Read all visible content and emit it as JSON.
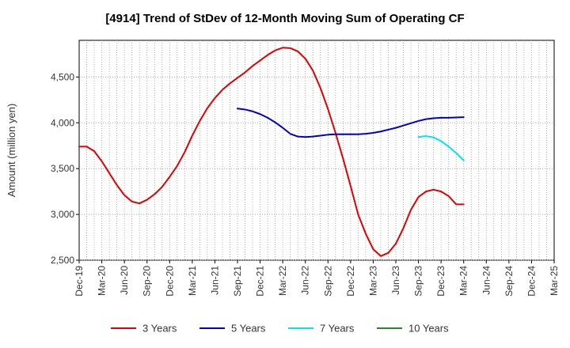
{
  "chart_data": {
    "type": "line",
    "title": "[4914]  Trend of StDev of 12-Month Moving Sum of Operating CF",
    "xlabel": "",
    "ylabel": "Amount (million yen)",
    "ylim": [
      2500,
      4900
    ],
    "yticks": [
      2500,
      3000,
      3500,
      4000,
      4500
    ],
    "ytick_labels": [
      "2,500",
      "3,000",
      "3,500",
      "4,000",
      "4,500"
    ],
    "xlim": [
      "2019-12",
      "2025-03"
    ],
    "xtick_labels": [
      "Dec-19",
      "Mar-20",
      "Jun-20",
      "Sep-20",
      "Dec-20",
      "Mar-21",
      "Jun-21",
      "Sep-21",
      "Dec-21",
      "Mar-22",
      "Jun-22",
      "Sep-22",
      "Dec-22",
      "Mar-23",
      "Jun-23",
      "Sep-23",
      "Dec-23",
      "Mar-24",
      "Jun-24",
      "Sep-24",
      "Dec-24",
      "Mar-25"
    ],
    "grid": true,
    "legend_position": "bottom",
    "series": [
      {
        "name": "3 Years",
        "color": "#e00000",
        "x": [
          "2019-12",
          "2020-01",
          "2020-02",
          "2020-03",
          "2020-04",
          "2020-05",
          "2020-06",
          "2020-07",
          "2020-08",
          "2020-09",
          "2020-10",
          "2020-11",
          "2020-12",
          "2021-01",
          "2021-02",
          "2021-03",
          "2021-04",
          "2021-05",
          "2021-06",
          "2021-07",
          "2021-08",
          "2021-09",
          "2021-10",
          "2021-11",
          "2021-12",
          "2022-01",
          "2022-02",
          "2022-03",
          "2022-04",
          "2022-05",
          "2022-06",
          "2022-07",
          "2022-08",
          "2022-09",
          "2022-10",
          "2022-11",
          "2022-12",
          "2023-01",
          "2023-02",
          "2023-03",
          "2023-04",
          "2023-05",
          "2023-06",
          "2023-07",
          "2023-08",
          "2023-09",
          "2023-10",
          "2023-11",
          "2023-12",
          "2024-01",
          "2024-02",
          "2024-03"
        ],
        "values": [
          3740,
          3740,
          3690,
          3580,
          3450,
          3320,
          3210,
          3140,
          3120,
          3160,
          3220,
          3300,
          3410,
          3530,
          3680,
          3860,
          4020,
          4160,
          4270,
          4360,
          4430,
          4490,
          4550,
          4620,
          4680,
          4740,
          4790,
          4820,
          4815,
          4780,
          4700,
          4570,
          4380,
          4150,
          3890,
          3610,
          3310,
          3000,
          2790,
          2620,
          2545,
          2580,
          2680,
          2850,
          3050,
          3190,
          3250,
          3270,
          3250,
          3200,
          3110,
          3110
        ]
      },
      {
        "name": "5 Years",
        "color": "#0000cc",
        "x": [
          "2021-09",
          "2021-10",
          "2021-11",
          "2021-12",
          "2022-01",
          "2022-02",
          "2022-03",
          "2022-04",
          "2022-05",
          "2022-06",
          "2022-07",
          "2022-08",
          "2022-09",
          "2022-10",
          "2022-11",
          "2022-12",
          "2023-01",
          "2023-02",
          "2023-03",
          "2023-04",
          "2023-05",
          "2023-06",
          "2023-07",
          "2023-08",
          "2023-09",
          "2023-10",
          "2023-11",
          "2023-12",
          "2024-01",
          "2024-02",
          "2024-03"
        ],
        "values": [
          4155,
          4145,
          4125,
          4095,
          4055,
          4005,
          3945,
          3880,
          3850,
          3845,
          3850,
          3860,
          3870,
          3875,
          3875,
          3875,
          3875,
          3880,
          3890,
          3905,
          3925,
          3945,
          3970,
          3995,
          4020,
          4040,
          4050,
          4055,
          4055,
          4058,
          4062
        ]
      },
      {
        "name": "7 Years",
        "color": "#00e5ee",
        "x": [
          "2023-09",
          "2023-10",
          "2023-11",
          "2023-12",
          "2024-01",
          "2024-02",
          "2024-03"
        ],
        "values": [
          3845,
          3855,
          3840,
          3800,
          3740,
          3670,
          3590
        ]
      },
      {
        "name": "10 Years",
        "color": "#228b22",
        "x": [],
        "values": []
      }
    ]
  }
}
